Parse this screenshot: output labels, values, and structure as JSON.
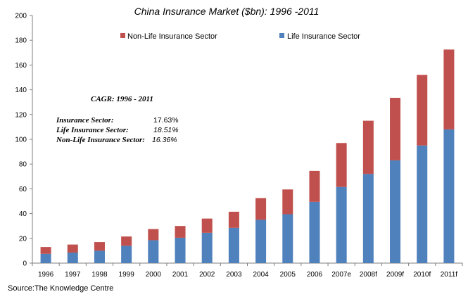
{
  "chart_data": {
    "type": "bar",
    "stacked": true,
    "title": "China Insurance Market ($bn): 1996 -2011",
    "categories": [
      "1996",
      "1997",
      "1998",
      "1999",
      "2000",
      "2001",
      "2002",
      "2003",
      "2004",
      "2005",
      "2006",
      "2007e",
      "2008f",
      "2009f",
      "2010f",
      "2011f"
    ],
    "series": [
      {
        "name": "Life Insurance Sector",
        "color": "#4f81bd",
        "values": [
          7.5,
          8.5,
          10,
          14,
          18.5,
          20.5,
          24.5,
          28.5,
          35,
          39.5,
          49.5,
          61.5,
          72,
          83,
          95,
          108
        ]
      },
      {
        "name": "Non-Life Insurance Sector",
        "color": "#c0504d",
        "values": [
          5.5,
          6.5,
          7,
          7.5,
          9,
          9.5,
          11.5,
          13,
          17.5,
          20,
          25,
          35.5,
          43,
          50.5,
          57,
          64.5
        ]
      }
    ],
    "ylim": [
      0,
      200
    ],
    "yticks": [
      0,
      20,
      40,
      60,
      80,
      100,
      120,
      140,
      160,
      180,
      200
    ],
    "grid": false,
    "legend_position": "top"
  },
  "cagr": {
    "heading": "CAGR:  1996 - 2011",
    "rows": [
      {
        "label": "Insurance Sector:",
        "value": "17.63%"
      },
      {
        "label": "Life Insurance Sector:",
        "value": "18.51%"
      },
      {
        "label": "Non-Life Insurance Sector:",
        "value": "16.36%"
      }
    ]
  },
  "source": "Source:The Knowledge Centre"
}
